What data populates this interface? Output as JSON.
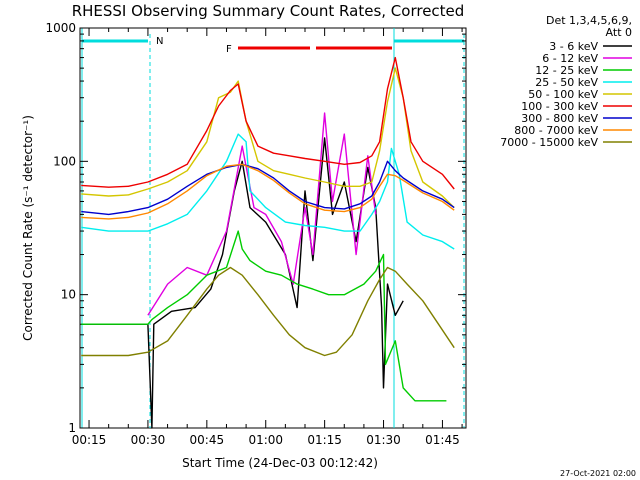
{
  "chart_data": {
    "type": "line",
    "title": "RHESSI Observing Summary Count Rates, Corrected",
    "xlabel": "Start Time (24-Dec-03 00:12:42)",
    "ylabel": "Corrected Count Rate (s⁻¹ detector⁻¹)",
    "yscale": "log",
    "ylim": [
      1,
      1000
    ],
    "xlim_minutes": [
      12.7,
      111
    ],
    "x_ticks": [
      {
        "label": "00:15",
        "minute": 15
      },
      {
        "label": "00:30",
        "minute": 30
      },
      {
        "label": "00:45",
        "minute": 45
      },
      {
        "label": "01:00",
        "minute": 60
      },
      {
        "label": "01:15",
        "minute": 75
      },
      {
        "label": "01:30",
        "minute": 90
      },
      {
        "label": "01:45",
        "minute": 105
      }
    ],
    "y_ticks": [
      {
        "label": "1",
        "value": 1
      },
      {
        "label": "10",
        "value": 10
      },
      {
        "label": "100",
        "value": 100
      },
      {
        "label": "1000",
        "value": 1000
      }
    ],
    "legend_header": [
      "Det 1,3,4,5,6,9,",
      "Att 0"
    ],
    "series": [
      {
        "name": "3 - 6 keV",
        "color": "#000000",
        "points": [
          [
            13,
            6
          ],
          [
            30,
            6
          ],
          [
            31,
            1
          ],
          [
            31.5,
            6
          ],
          [
            36,
            7.5
          ],
          [
            42,
            8
          ],
          [
            46,
            11
          ],
          [
            49,
            20
          ],
          [
            52,
            60
          ],
          [
            54,
            100
          ],
          [
            56,
            45
          ],
          [
            60,
            35
          ],
          [
            65,
            20
          ],
          [
            68,
            8
          ],
          [
            70,
            60
          ],
          [
            72,
            18
          ],
          [
            75,
            150
          ],
          [
            77,
            40
          ],
          [
            80,
            70
          ],
          [
            83,
            25
          ],
          [
            86,
            90
          ],
          [
            88,
            45
          ],
          [
            89.5,
            8
          ],
          [
            90,
            2
          ],
          [
            91,
            12
          ],
          [
            93,
            7
          ],
          [
            95,
            9
          ]
        ]
      },
      {
        "name": "6 - 12 keV",
        "color": "#e000e0",
        "points": [
          [
            30,
            7
          ],
          [
            35,
            12
          ],
          [
            40,
            16
          ],
          [
            45,
            14
          ],
          [
            50,
            30
          ],
          [
            54,
            130
          ],
          [
            57,
            45
          ],
          [
            60,
            40
          ],
          [
            64,
            25
          ],
          [
            67,
            12
          ],
          [
            70,
            45
          ],
          [
            72,
            20
          ],
          [
            75,
            230
          ],
          [
            77,
            50
          ],
          [
            80,
            160
          ],
          [
            83,
            20
          ],
          [
            86,
            110
          ],
          [
            88,
            40
          ]
        ]
      },
      {
        "name": "12 - 25 keV",
        "color": "#00cc00",
        "points": [
          [
            13,
            6
          ],
          [
            30,
            6
          ],
          [
            31,
            6.5
          ],
          [
            35,
            8
          ],
          [
            40,
            10
          ],
          [
            45,
            14
          ],
          [
            50,
            16
          ],
          [
            53,
            30
          ],
          [
            54,
            22
          ],
          [
            56,
            18
          ],
          [
            60,
            15
          ],
          [
            64,
            14
          ],
          [
            68,
            12
          ],
          [
            72,
            11
          ],
          [
            76,
            10
          ],
          [
            80,
            10
          ],
          [
            85,
            12
          ],
          [
            88,
            15
          ],
          [
            90,
            20
          ],
          [
            90.5,
            3
          ],
          [
            93,
            4.5
          ],
          [
            95,
            2
          ],
          [
            98,
            1.6
          ],
          [
            102,
            1.6
          ],
          [
            106,
            1.6
          ]
        ]
      },
      {
        "name": "25 - 50 keV",
        "color": "#00eeee",
        "points": [
          [
            13,
            32
          ],
          [
            20,
            30
          ],
          [
            25,
            30
          ],
          [
            30,
            30
          ],
          [
            35,
            34
          ],
          [
            40,
            40
          ],
          [
            45,
            60
          ],
          [
            50,
            100
          ],
          [
            53,
            160
          ],
          [
            55,
            140
          ],
          [
            56,
            60
          ],
          [
            60,
            45
          ],
          [
            65,
            35
          ],
          [
            70,
            33
          ],
          [
            75,
            32
          ],
          [
            80,
            30
          ],
          [
            84,
            30
          ],
          [
            87,
            40
          ],
          [
            89,
            50
          ],
          [
            91,
            70
          ],
          [
            92,
            125
          ],
          [
            94,
            80
          ],
          [
            96,
            35
          ],
          [
            100,
            28
          ],
          [
            105,
            25
          ],
          [
            108,
            22
          ]
        ]
      },
      {
        "name": "50 - 100 keV",
        "color": "#d4c600",
        "points": [
          [
            13,
            57
          ],
          [
            20,
            55
          ],
          [
            25,
            56
          ],
          [
            30,
            62
          ],
          [
            35,
            70
          ],
          [
            40,
            85
          ],
          [
            45,
            140
          ],
          [
            48,
            300
          ],
          [
            51,
            330
          ],
          [
            53,
            400
          ],
          [
            55,
            200
          ],
          [
            58,
            100
          ],
          [
            62,
            85
          ],
          [
            66,
            80
          ],
          [
            70,
            75
          ],
          [
            75,
            70
          ],
          [
            80,
            65
          ],
          [
            84,
            65
          ],
          [
            87,
            70
          ],
          [
            89,
            120
          ],
          [
            91,
            280
          ],
          [
            93,
            500
          ],
          [
            95,
            300
          ],
          [
            97,
            120
          ],
          [
            100,
            70
          ],
          [
            105,
            55
          ],
          [
            108,
            45
          ]
        ]
      },
      {
        "name": "100 - 300 keV",
        "color": "#ee0000",
        "points": [
          [
            13,
            66
          ],
          [
            20,
            64
          ],
          [
            25,
            65
          ],
          [
            30,
            70
          ],
          [
            35,
            80
          ],
          [
            40,
            95
          ],
          [
            45,
            170
          ],
          [
            48,
            260
          ],
          [
            51,
            340
          ],
          [
            53,
            380
          ],
          [
            55,
            200
          ],
          [
            58,
            130
          ],
          [
            62,
            115
          ],
          [
            66,
            110
          ],
          [
            70,
            105
          ],
          [
            75,
            100
          ],
          [
            80,
            95
          ],
          [
            84,
            98
          ],
          [
            87,
            110
          ],
          [
            89,
            140
          ],
          [
            91,
            350
          ],
          [
            93,
            600
          ],
          [
            95,
            300
          ],
          [
            97,
            140
          ],
          [
            100,
            100
          ],
          [
            105,
            80
          ],
          [
            108,
            62
          ]
        ]
      },
      {
        "name": "300 - 800 keV",
        "color": "#0000cc",
        "points": [
          [
            13,
            42
          ],
          [
            20,
            40
          ],
          [
            25,
            42
          ],
          [
            30,
            45
          ],
          [
            35,
            52
          ],
          [
            40,
            65
          ],
          [
            45,
            80
          ],
          [
            50,
            90
          ],
          [
            54,
            95
          ],
          [
            58,
            88
          ],
          [
            62,
            75
          ],
          [
            66,
            60
          ],
          [
            70,
            50
          ],
          [
            75,
            45
          ],
          [
            80,
            44
          ],
          [
            84,
            48
          ],
          [
            87,
            55
          ],
          [
            89,
            70
          ],
          [
            91,
            100
          ],
          [
            93,
            85
          ],
          [
            95,
            75
          ],
          [
            100,
            60
          ],
          [
            105,
            52
          ],
          [
            108,
            45
          ]
        ]
      },
      {
        "name": "800 - 7000 keV",
        "color": "#ff8800",
        "points": [
          [
            13,
            38
          ],
          [
            20,
            37
          ],
          [
            25,
            38
          ],
          [
            30,
            41
          ],
          [
            35,
            48
          ],
          [
            40,
            60
          ],
          [
            45,
            78
          ],
          [
            50,
            92
          ],
          [
            54,
            95
          ],
          [
            58,
            85
          ],
          [
            62,
            72
          ],
          [
            66,
            58
          ],
          [
            70,
            48
          ],
          [
            75,
            43
          ],
          [
            80,
            42
          ],
          [
            84,
            45
          ],
          [
            87,
            52
          ],
          [
            89,
            65
          ],
          [
            91,
            80
          ],
          [
            93,
            78
          ],
          [
            95,
            72
          ],
          [
            100,
            58
          ],
          [
            105,
            50
          ],
          [
            108,
            43
          ]
        ]
      },
      {
        "name": "7000 - 15000 keV",
        "color": "#808000",
        "points": [
          [
            13,
            3.5
          ],
          [
            20,
            3.5
          ],
          [
            25,
            3.5
          ],
          [
            30,
            3.7
          ],
          [
            35,
            4.5
          ],
          [
            40,
            7
          ],
          [
            45,
            11
          ],
          [
            48,
            14
          ],
          [
            51,
            16
          ],
          [
            54,
            14
          ],
          [
            58,
            10
          ],
          [
            62,
            7
          ],
          [
            66,
            5
          ],
          [
            70,
            4
          ],
          [
            75,
            3.5
          ],
          [
            78,
            3.7
          ],
          [
            82,
            5
          ],
          [
            86,
            9
          ],
          [
            89,
            13
          ],
          [
            91,
            16
          ],
          [
            93,
            15
          ],
          [
            96,
            12
          ],
          [
            100,
            9
          ],
          [
            104,
            6
          ],
          [
            108,
            4
          ]
        ]
      }
    ],
    "annotations": [
      {
        "label": "N",
        "color": "#00dddd",
        "kind": "night-bar"
      },
      {
        "label": "F",
        "color": "#ee0000",
        "kind": "flare-bar"
      }
    ],
    "footer_date": "27-Oct-2021 02:00"
  }
}
